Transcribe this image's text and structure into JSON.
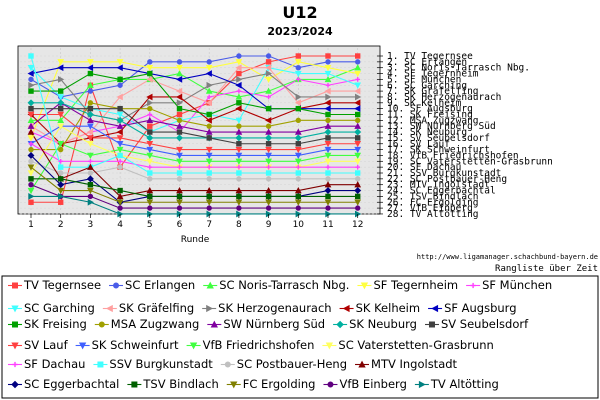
{
  "chart_data": {
    "type": "line",
    "title": "U12",
    "subtitle": "2023/2024",
    "xlabel": "Runde",
    "ylabel": "",
    "x": [
      1,
      2,
      3,
      4,
      5,
      6,
      7,
      8,
      9,
      10,
      11,
      12
    ],
    "ylim": [
      1,
      28
    ],
    "y_inverted": true,
    "grid": true,
    "legend_position": "bottom",
    "url_text": "http://www.ligamanager.schachbund-bayern.de",
    "caption": "Rangliste über Zeit",
    "rank_labels": [
      "1.  TV Tegernsee",
      "2.  SC Erlangen",
      "3.  SC Noris-Tarrasch Nbg.",
      "4.  SF Tegernheim",
      "5.  SF München",
      "6.  SC Garching",
      "7.  SK Gräfelfing",
      "8.  SK Herzogenaurach",
      "9.  SK Kelheim",
      "10. SF Augsburg",
      "11. SK Freising",
      "12. MSA Zugzwang",
      "13. SW Nürnberg Süd",
      "14. SK Neuburg",
      "15. SV Seubelsdorf",
      "16. SV Lauf",
      "17. SK Schweinfurt",
      "18. VfB Friedrichshofen",
      "19. SC Vaterstetten-Grasbrunn",
      "20. SF Dachau",
      "21. SSV Burgkunstadt",
      "22. SC Postbauer-Heng",
      "23. MTV Ingolstadt",
      "24. SC Eggerbachtal",
      "25. TSV Bindlach",
      "26. FC Ergolding",
      "27. VfB Einberg",
      "28. TV Altötting"
    ],
    "series": [
      {
        "name": "TV Tegernsee",
        "color": "#ff4040",
        "marker": "square",
        "values": [
          26,
          26,
          6,
          20,
          13,
          11,
          9,
          4,
          2,
          1,
          1,
          1
        ]
      },
      {
        "name": "SC Erlangen",
        "color": "#4a5ce8",
        "marker": "circle",
        "values": [
          5,
          8,
          7,
          6,
          2,
          2,
          2,
          1,
          1,
          3,
          2,
          2
        ]
      },
      {
        "name": "SC Noris-Tarrasch Nbg.",
        "color": "#40ff40",
        "marker": "triangle-up",
        "values": [
          12,
          12,
          6,
          5,
          5,
          4,
          7,
          8,
          7,
          5,
          5,
          3
        ]
      },
      {
        "name": "SF Tegernheim",
        "color": "#ffff40",
        "marker": "triangle-down",
        "values": [
          15,
          2,
          2,
          2,
          3,
          3,
          3,
          2,
          5,
          2,
          3,
          4
        ]
      },
      {
        "name": "SF München",
        "color": "#ff40ff",
        "marker": "cross",
        "values": [
          14,
          16,
          14,
          13,
          11,
          14,
          8,
          7,
          8,
          5,
          6,
          5
        ]
      },
      {
        "name": "SC Garching",
        "color": "#40ffff",
        "marker": "triangle-down",
        "values": [
          3,
          8,
          10,
          11,
          14,
          12,
          11,
          12,
          3,
          4,
          4,
          6
        ]
      },
      {
        "name": "SK Gräfelfing",
        "color": "#ffa0a0",
        "marker": "triangle-left",
        "values": [
          13,
          16,
          14,
          8,
          5,
          7,
          9,
          3,
          3,
          9,
          7,
          7
        ]
      },
      {
        "name": "SK Herzogenaurach",
        "color": "#808080",
        "marker": "triangle-right",
        "values": [
          6,
          5,
          11,
          12,
          9,
          9,
          6,
          5,
          4,
          8,
          8,
          8
        ]
      },
      {
        "name": "SK Kelheim",
        "color": "#b00000",
        "marker": "triangle-left",
        "values": [
          11,
          16,
          15,
          14,
          8,
          8,
          12,
          10,
          12,
          10,
          9,
          9
        ]
      },
      {
        "name": "SF Augsburg",
        "color": "#0000c0",
        "marker": "triangle-left",
        "values": [
          4,
          3,
          3,
          3,
          4,
          5,
          4,
          6,
          10,
          10,
          10,
          10
        ]
      },
      {
        "name": "SK Freising",
        "color": "#00a000",
        "marker": "square",
        "values": [
          7,
          7,
          4,
          5,
          4,
          10,
          11,
          9,
          10,
          10,
          11,
          11
        ]
      },
      {
        "name": "MSA Zugzwang",
        "color": "#a0a000",
        "marker": "circle",
        "values": [
          17,
          17,
          9,
          10,
          10,
          12,
          13,
          13,
          13,
          12,
          12,
          12
        ]
      },
      {
        "name": "SW Nürnberg Süd",
        "color": "#8000a0",
        "marker": "triangle-up",
        "values": [
          13,
          9,
          12,
          13,
          12,
          13,
          14,
          14,
          14,
          14,
          13,
          13
        ]
      },
      {
        "name": "SK Neuburg",
        "color": "#00b0a0",
        "marker": "diamond",
        "values": [
          9,
          9,
          11,
          12,
          15,
          15,
          15,
          15,
          15,
          15,
          14,
          14
        ]
      },
      {
        "name": "SV Seubelsdorf",
        "color": "#404040",
        "marker": "square",
        "values": [
          10,
          10,
          10,
          10,
          14,
          14,
          15,
          16,
          16,
          16,
          15,
          15
        ]
      },
      {
        "name": "SV Lauf",
        "color": "#ff4040",
        "marker": "triangle-down",
        "values": [
          11,
          11,
          15,
          15,
          16,
          17,
          17,
          17,
          17,
          17,
          16,
          16
        ]
      },
      {
        "name": "SK Schweinfurt",
        "color": "#4060ff",
        "marker": "triangle-down",
        "values": [
          16,
          13,
          13,
          16,
          17,
          18,
          18,
          18,
          18,
          18,
          17,
          17
        ]
      },
      {
        "name": "VfB Friedrichshofen",
        "color": "#40ff40",
        "marker": "triangle-down",
        "values": [
          24,
          16,
          18,
          17,
          18,
          19,
          19,
          19,
          19,
          19,
          18,
          18
        ]
      },
      {
        "name": "SC Vaterstetten-Grasbrunn",
        "color": "#ffff60",
        "marker": "triangle-down",
        "values": [
          21,
          13,
          16,
          18,
          19,
          20,
          20,
          20,
          20,
          20,
          19,
          19
        ]
      },
      {
        "name": "SF Dachau",
        "color": "#ff40ff",
        "marker": "cross",
        "values": [
          16,
          19,
          19,
          19,
          20,
          20,
          20,
          20,
          20,
          20,
          20,
          20
        ]
      },
      {
        "name": "SSV Burgkunstadt",
        "color": "#40ffff",
        "marker": "square",
        "values": [
          1,
          20,
          20,
          18,
          21,
          21,
          21,
          21,
          21,
          21,
          21,
          21
        ]
      },
      {
        "name": "SC Postbauer-Heng",
        "color": "#c0c0c0",
        "marker": "circle",
        "values": [
          19,
          21,
          21,
          20,
          22,
          22,
          22,
          22,
          22,
          22,
          22,
          22
        ]
      },
      {
        "name": "MTV Ingolstadt",
        "color": "#800000",
        "marker": "triangle-up",
        "values": [
          14,
          22,
          20,
          25,
          24,
          24,
          24,
          24,
          24,
          24,
          23,
          23
        ]
      },
      {
        "name": "SC Eggerbachtal",
        "color": "#000080",
        "marker": "diamond",
        "values": [
          18,
          23,
          22,
          26,
          25,
          25,
          25,
          25,
          25,
          25,
          24,
          24
        ]
      },
      {
        "name": "TSV Bindlach",
        "color": "#006000",
        "marker": "square",
        "values": [
          22,
          22,
          23,
          24,
          25,
          25,
          25,
          25,
          25,
          25,
          25,
          25
        ]
      },
      {
        "name": "FC Ergolding",
        "color": "#808000",
        "marker": "triangle-down",
        "values": [
          20,
          24,
          24,
          26,
          26,
          26,
          26,
          26,
          26,
          26,
          26,
          26
        ]
      },
      {
        "name": "VfB Einberg",
        "color": "#600080",
        "marker": "circle",
        "values": [
          23,
          25,
          25,
          27,
          27,
          27,
          27,
          27,
          27,
          27,
          27,
          27
        ]
      },
      {
        "name": "TV Altötting",
        "color": "#008080",
        "marker": "triangle-right",
        "values": [
          25,
          25,
          26,
          28,
          28,
          28,
          28,
          28,
          28,
          28,
          28,
          28
        ]
      }
    ]
  }
}
